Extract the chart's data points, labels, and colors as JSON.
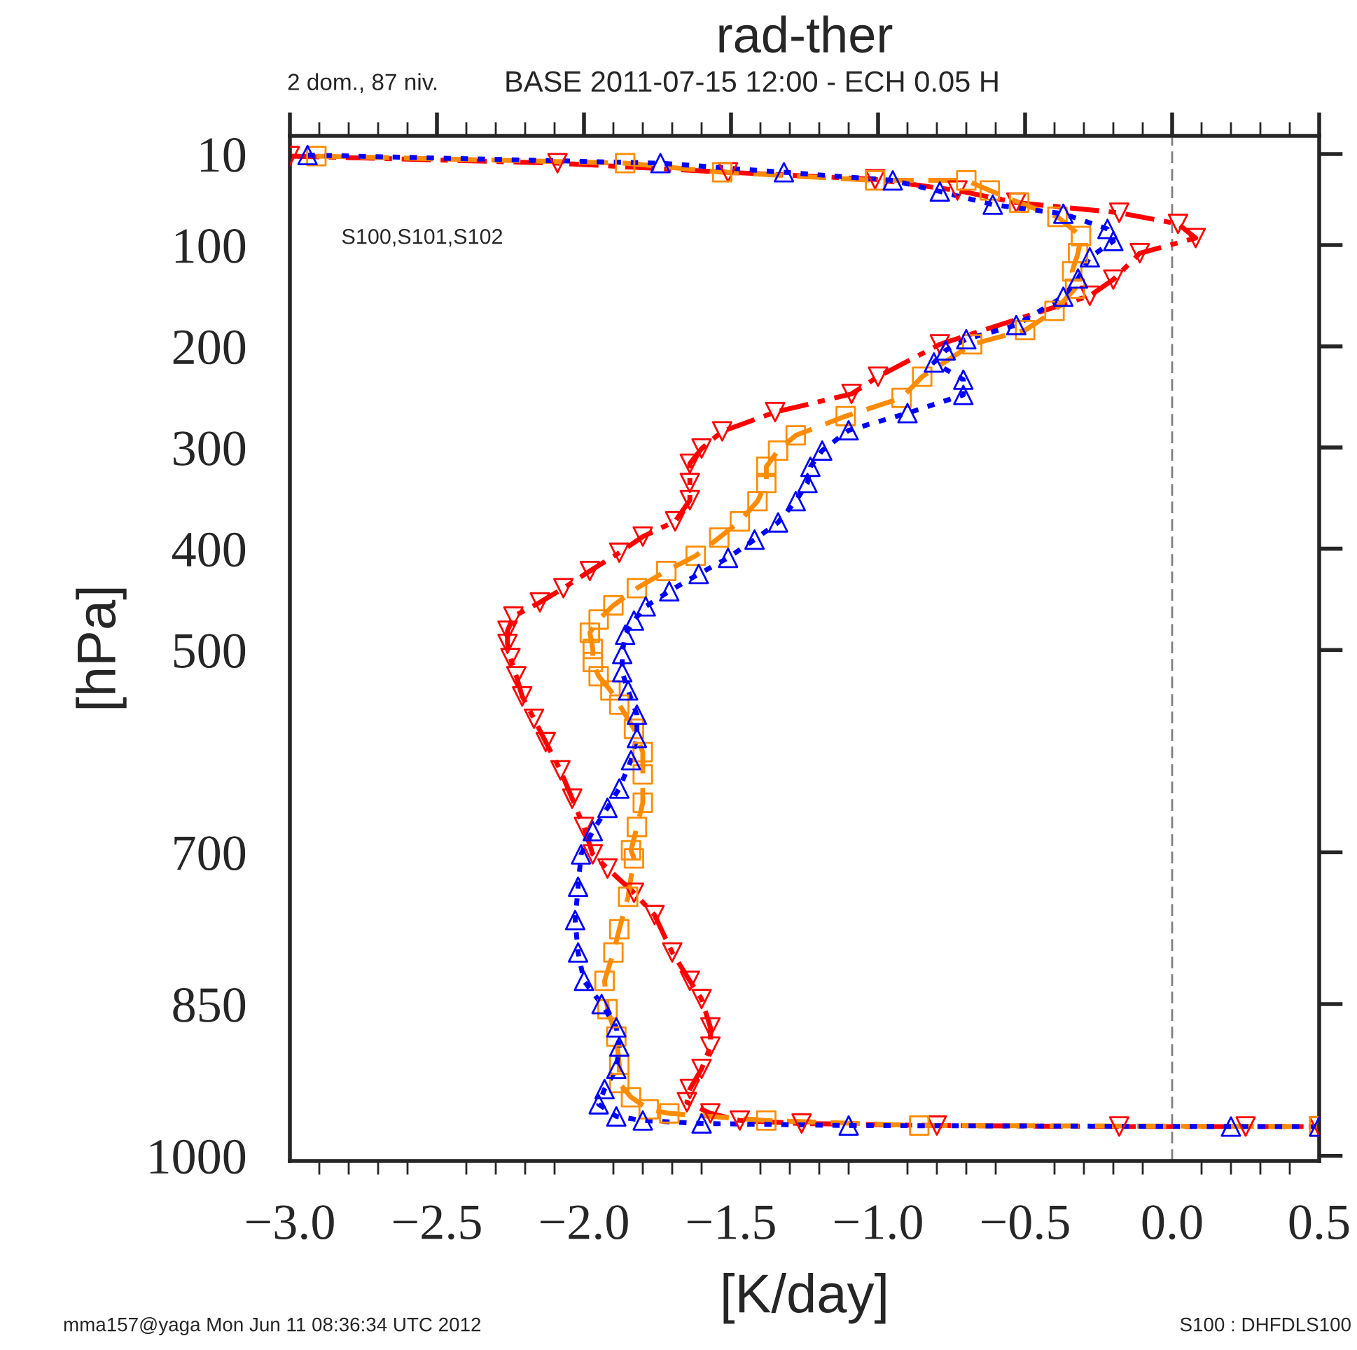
{
  "chart_data": {
    "type": "line",
    "title": "rad-ther",
    "subtitle": "BASE 2011-07-15 12:00 - ECH 0.05 H",
    "xlabel": "[K/day]",
    "ylabel": "[hPa]",
    "annotations": [
      "2 dom., 87 niv.",
      "S100,S101,S102",
      "mma157@yaga Mon Jun 11 08:36:34 UTC 2012",
      "S100 : DHFDLS100"
    ],
    "xlim": [
      -3.0,
      0.5
    ],
    "ylim": [
      1005,
      -8
    ],
    "xticks": [
      {
        "value": -3.0,
        "label": "−3.0"
      },
      {
        "value": -2.5,
        "label": "−2.5"
      },
      {
        "value": -2.0,
        "label": "−2.0"
      },
      {
        "value": -1.5,
        "label": "−1.5"
      },
      {
        "value": -1.0,
        "label": "−1.0"
      },
      {
        "value": -0.5,
        "label": "−0.5"
      },
      {
        "value": 0.0,
        "label": "0.0"
      },
      {
        "value": 0.5,
        "label": "0.5"
      },
      {
        "value": -2.9,
        "label": null
      },
      {
        "value": -2.8,
        "label": null
      },
      {
        "value": -2.7,
        "label": null
      },
      {
        "value": -2.6,
        "label": null
      },
      {
        "value": -2.4,
        "label": null
      },
      {
        "value": -2.3,
        "label": null
      },
      {
        "value": -2.2,
        "label": null
      },
      {
        "value": -2.1,
        "label": null
      },
      {
        "value": -1.9,
        "label": null
      },
      {
        "value": -1.8,
        "label": null
      },
      {
        "value": -1.7,
        "label": null
      },
      {
        "value": -1.6,
        "label": null
      },
      {
        "value": -1.4,
        "label": null
      },
      {
        "value": -1.3,
        "label": null
      },
      {
        "value": -1.2,
        "label": null
      },
      {
        "value": -1.1,
        "label": null
      },
      {
        "value": -0.9,
        "label": null
      },
      {
        "value": -0.8,
        "label": null
      },
      {
        "value": -0.7,
        "label": null
      },
      {
        "value": -0.6,
        "label": null
      },
      {
        "value": -0.4,
        "label": null
      },
      {
        "value": -0.3,
        "label": null
      },
      {
        "value": -0.2,
        "label": null
      },
      {
        "value": -0.1,
        "label": null
      },
      {
        "value": 0.1,
        "label": null
      },
      {
        "value": 0.2,
        "label": null
      },
      {
        "value": 0.3,
        "label": null
      },
      {
        "value": 0.4,
        "label": null
      }
    ],
    "yticks": [
      10,
      100,
      200,
      300,
      400,
      500,
      700,
      850,
      1000
    ],
    "ref_lines": [
      {
        "axis": "x",
        "value": 0.0,
        "color": "#808080",
        "line_style": "dashed"
      }
    ],
    "grid": false,
    "legend": false,
    "series": [
      {
        "color": "#ff0000",
        "marker": "triangle_down",
        "line_style": "dashdot",
        "x": [
          -3.0,
          -2.09,
          -1.51,
          -1.01,
          -0.73,
          -0.53,
          -0.18,
          0.02,
          0.08,
          -0.11,
          -0.2,
          -0.28,
          -0.79,
          -1.0,
          -1.09,
          -1.35,
          -1.53,
          -1.6,
          -1.64,
          -1.64,
          -1.64,
          -1.69,
          -1.8,
          -1.88,
          -1.98,
          -2.07,
          -2.15,
          -2.24,
          -2.26,
          -2.26,
          -2.25,
          -2.23,
          -2.21,
          -2.17,
          -2.13,
          -2.08,
          -2.04,
          -2.0,
          -1.97,
          -1.92,
          -1.83,
          -1.76,
          -1.7,
          -1.64,
          -1.6,
          -1.57,
          -1.57,
          -1.6,
          -1.64,
          -1.65,
          -1.57,
          -1.47,
          -1.26,
          -0.8,
          -0.18,
          0.25,
          0.5
        ],
        "values": [
          12,
          19,
          28,
          35,
          46,
          58,
          68,
          79,
          93,
          108,
          134,
          150,
          198,
          230,
          247,
          265,
          284,
          301,
          316,
          335,
          352,
          373,
          388,
          404,
          422,
          439,
          453,
          467,
          481,
          494,
          508,
          526,
          546,
          568,
          591,
          619,
          647,
          675,
          702,
          716,
          740,
          762,
          799,
          827,
          845,
          873,
          892,
          914,
          934,
          947,
          958,
          965,
          968,
          970,
          971,
          971,
          971
        ]
      },
      {
        "color": "#ff8c00",
        "marker": "square",
        "line_style": "dashed",
        "x": [
          -2.91,
          -1.86,
          -1.53,
          -1.01,
          -0.7,
          -0.62,
          -0.52,
          -0.39,
          -0.31,
          -0.32,
          -0.34,
          -0.33,
          -0.4,
          -0.5,
          -0.68,
          -0.85,
          -0.92,
          -1.11,
          -1.28,
          -1.34,
          -1.38,
          -1.38,
          -1.41,
          -1.47,
          -1.54,
          -1.62,
          -1.72,
          -1.82,
          -1.9,
          -1.95,
          -1.98,
          -1.97,
          -1.97,
          -1.95,
          -1.91,
          -1.88,
          -1.83,
          -1.8,
          -1.8,
          -1.8,
          -1.82,
          -1.84,
          -1.83,
          -1.85,
          -1.88,
          -1.9,
          -1.93,
          -1.92,
          -1.89,
          -1.88,
          -1.88,
          -1.84,
          -1.78,
          -1.71,
          -1.38,
          -0.86,
          0.5
        ],
        "values": [
          12,
          19,
          28,
          36,
          36,
          46,
          58,
          72,
          91,
          108,
          126,
          143,
          165,
          184,
          198,
          230,
          251,
          269,
          288,
          303,
          319,
          335,
          353,
          373,
          389,
          407,
          422,
          439,
          456,
          470,
          483,
          499,
          512,
          526,
          540,
          554,
          578,
          601,
          623,
          651,
          675,
          698,
          706,
          744,
          776,
          799,
          827,
          855,
          882,
          910,
          928,
          942,
          954,
          958,
          965,
          970,
          971
        ]
      },
      {
        "color": "#0000ff",
        "marker": "triangle",
        "line_style": "dotted",
        "x": [
          -2.94,
          -1.74,
          -1.32,
          -0.95,
          -0.79,
          -0.61,
          -0.37,
          -0.22,
          -0.2,
          -0.28,
          -0.32,
          -0.37,
          -0.53,
          -0.7,
          -0.77,
          -0.81,
          -0.71,
          -0.71,
          -0.9,
          -1.1,
          -1.19,
          -1.23,
          -1.24,
          -1.28,
          -1.34,
          -1.42,
          -1.51,
          -1.61,
          -1.71,
          -1.79,
          -1.83,
          -1.86,
          -1.87,
          -1.87,
          -1.85,
          -1.82,
          -1.82,
          -1.84,
          -1.88,
          -1.92,
          -1.97,
          -2.01,
          -2.02,
          -2.03,
          -2.02,
          -2.0,
          -1.94,
          -1.89,
          -1.88,
          -1.89,
          -1.93,
          -1.95,
          -1.89,
          -1.8,
          -1.6,
          -1.1,
          0.2,
          0.5
        ],
        "values": [
          11,
          19,
          28,
          36,
          47,
          60,
          69,
          84,
          96,
          112,
          133,
          151,
          179,
          193,
          204,
          216,
          233,
          248,
          266,
          283,
          303,
          319,
          335,
          353,
          374,
          391,
          409,
          425,
          442,
          457,
          471,
          485,
          504,
          522,
          540,
          564,
          587,
          609,
          637,
          656,
          679,
          702,
          734,
          767,
          799,
          827,
          850,
          873,
          892,
          914,
          934,
          949,
          961,
          965,
          968,
          970,
          971,
          971
        ]
      }
    ]
  }
}
